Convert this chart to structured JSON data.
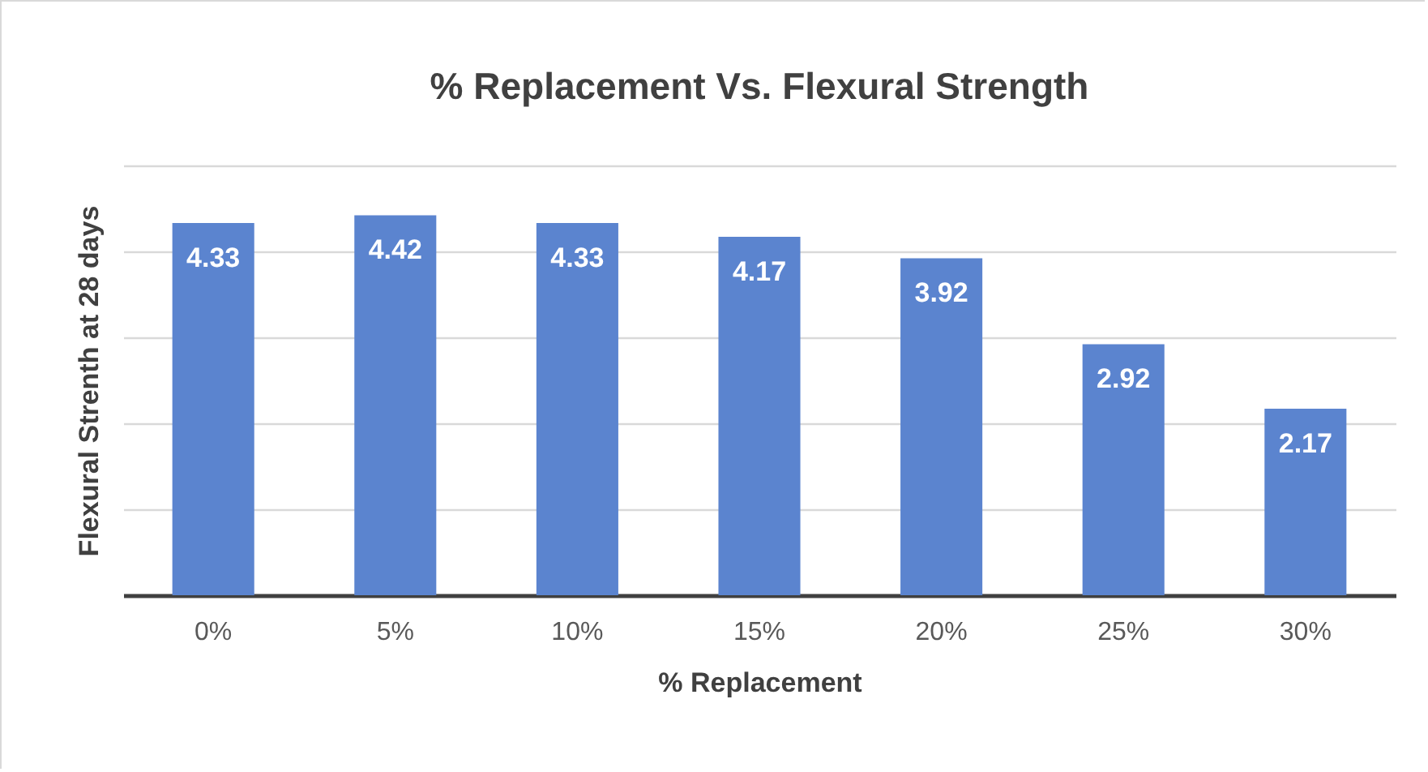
{
  "chart_data": {
    "type": "bar",
    "title": "% Replacement Vs. Flexural Strength",
    "xlabel": "% Replacement",
    "ylabel": "Flexural Strenth at 28 days",
    "categories": [
      "0%",
      "5%",
      "10%",
      "15%",
      "20%",
      "25%",
      "30%"
    ],
    "values": [
      4.33,
      4.42,
      4.33,
      4.17,
      3.92,
      2.92,
      2.17
    ],
    "color": "#5b84cf",
    "ylim": [
      0,
      5
    ],
    "yticks": [
      {
        "value": 0,
        "label": null
      },
      {
        "value": 1,
        "label": null
      },
      {
        "value": 2,
        "label": null
      },
      {
        "value": 3,
        "label": null
      },
      {
        "value": 4,
        "label": null
      },
      {
        "value": 5,
        "label": null
      }
    ],
    "tick_labels": "x",
    "grid": "y",
    "data_labels": true
  }
}
